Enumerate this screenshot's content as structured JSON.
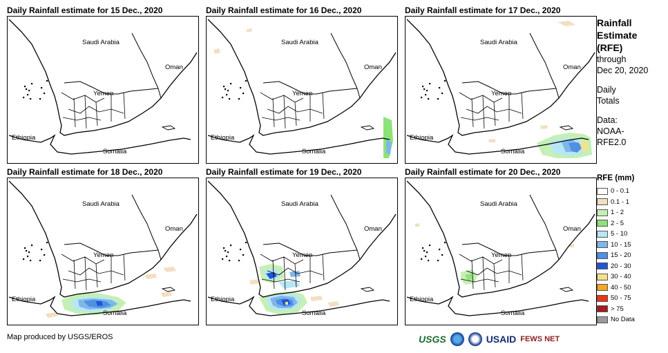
{
  "panels": [
    {
      "title": "Daily Rainfall estimate for 15 Dec., 2020"
    },
    {
      "title": "Daily Rainfall estimate for 16 Dec., 2020"
    },
    {
      "title": "Daily Rainfall estimate for 17 Dec., 2020"
    },
    {
      "title": "Daily Rainfall estimate for 18 Dec., 2020"
    },
    {
      "title": "Daily Rainfall estimate for 19 Dec., 2020"
    },
    {
      "title": "Daily Rainfall estimate for 20 Dec., 2020"
    }
  ],
  "map_labels": {
    "saudi": "Saudi Arabia",
    "oman": "Oman",
    "yemen": "Yemen",
    "ethiopia": "Ethiopia",
    "somalia": "Somalia"
  },
  "sidebar": {
    "title_line1": "Rainfall",
    "title_line2": "Estimate",
    "title_line3": "(RFE)",
    "through": "through",
    "date": "Dec 20, 2020",
    "daily": "Daily",
    "totals": "Totals",
    "data_label": "Data:",
    "data_source1": "NOAA-",
    "data_source2": "RFE2.0"
  },
  "legend": {
    "title": "RFE (mm)",
    "items": [
      {
        "label": "0 - 0.1",
        "color": "#ffffff"
      },
      {
        "label": "0.1 - 1",
        "color": "#f2dfc2"
      },
      {
        "label": "1 - 2",
        "color": "#c5f0b5"
      },
      {
        "label": "2 - 5",
        "color": "#8ee27a"
      },
      {
        "label": "5 - 10",
        "color": "#b7e6f5"
      },
      {
        "label": "10 - 15",
        "color": "#7fb6ea"
      },
      {
        "label": "15 - 20",
        "color": "#4f90e3"
      },
      {
        "label": "20 - 30",
        "color": "#1f55d6"
      },
      {
        "label": "30 - 40",
        "color": "#f4e28a"
      },
      {
        "label": "40 - 50",
        "color": "#f5a623"
      },
      {
        "label": "50 - 75",
        "color": "#e8381a"
      },
      {
        "label": "> 75",
        "color": "#a31d1d"
      },
      {
        "label": "No Data",
        "color": "#9a9a9a"
      }
    ]
  },
  "credit": "Map produced by USGS/EROS",
  "logos": {
    "usgs": "USGS",
    "usaid": "USAID",
    "fews": "FEWS NET"
  }
}
